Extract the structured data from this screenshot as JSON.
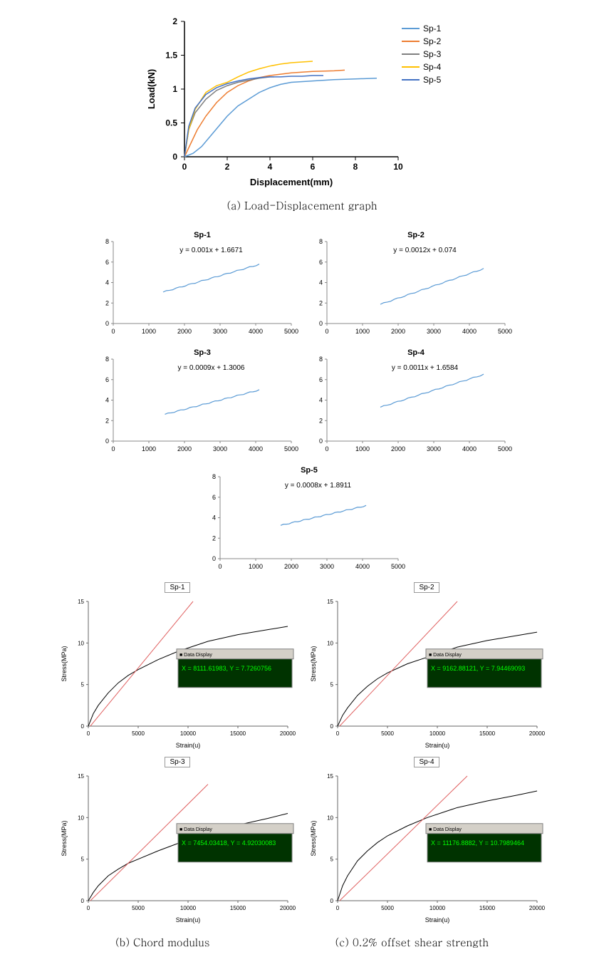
{
  "chart_a": {
    "type": "line",
    "title_fontsize": 14,
    "xlabel": "Displacement(mm)",
    "ylabel": "Load(kN)",
    "label_fontsize": 13,
    "xlim": [
      0,
      10
    ],
    "ylim": [
      0,
      2
    ],
    "xtick_step": 2,
    "ytick_step": 0.5,
    "background_color": "#ffffff",
    "axis_color": "#000000",
    "tick_fontsize": 12,
    "line_width": 1.5,
    "legend_position": "right",
    "series": [
      {
        "name": "Sp-1",
        "color": "#5b9bd5",
        "x": [
          0,
          0.4,
          0.8,
          1.2,
          1.6,
          2,
          2.5,
          3,
          3.5,
          4,
          4.5,
          5,
          6,
          7,
          8,
          9
        ],
        "y": [
          0,
          0.05,
          0.15,
          0.3,
          0.45,
          0.6,
          0.75,
          0.85,
          0.95,
          1.02,
          1.07,
          1.1,
          1.12,
          1.14,
          1.15,
          1.16
        ]
      },
      {
        "name": "Sp-2",
        "color": "#ed7d31",
        "x": [
          0,
          0.3,
          0.6,
          1,
          1.5,
          2,
          2.5,
          3,
          3.5,
          4,
          4.5,
          5,
          6,
          7,
          7.5
        ],
        "y": [
          0,
          0.2,
          0.4,
          0.6,
          0.8,
          0.95,
          1.05,
          1.12,
          1.17,
          1.2,
          1.22,
          1.24,
          1.26,
          1.27,
          1.28
        ]
      },
      {
        "name": "Sp-3",
        "color": "#7f7f7f",
        "x": [
          0,
          0.2,
          0.5,
          1,
          1.5,
          2,
          2.5,
          3,
          3.5,
          4,
          4.2
        ],
        "y": [
          0,
          0.4,
          0.65,
          0.85,
          0.98,
          1.05,
          1.1,
          1.13,
          1.16,
          1.18,
          1.18
        ]
      },
      {
        "name": "Sp-4",
        "color": "#ffc000",
        "x": [
          0,
          0.2,
          0.5,
          1,
          1.5,
          2,
          2.5,
          3,
          3.5,
          4,
          4.5,
          5,
          5.5,
          6
        ],
        "y": [
          0,
          0.4,
          0.7,
          0.95,
          1.05,
          1.1,
          1.18,
          1.25,
          1.3,
          1.34,
          1.37,
          1.39,
          1.4,
          1.41
        ]
      },
      {
        "name": "Sp-5",
        "color": "#4472c4",
        "x": [
          0,
          0.2,
          0.5,
          1,
          1.5,
          2,
          2.5,
          3,
          3.5,
          4,
          4.5,
          5,
          5.5,
          6,
          6.5
        ],
        "y": [
          0,
          0.45,
          0.72,
          0.92,
          1.02,
          1.08,
          1.12,
          1.15,
          1.17,
          1.18,
          1.18,
          1.19,
          1.19,
          1.2,
          1.2
        ]
      }
    ],
    "caption": "(a) Load-Displacement graph"
  },
  "chart_b": {
    "type": "line",
    "xlim": [
      0,
      5000
    ],
    "ylim": [
      0,
      8
    ],
    "xticks": [
      0,
      1000,
      2000,
      3000,
      4000,
      5000
    ],
    "yticks": [
      0,
      2,
      4,
      6,
      8
    ],
    "axis_color": "#888888",
    "line_color": "#5b9bd5",
    "line_width": 1.2,
    "title_fontsize": 11,
    "tick_fontsize": 9,
    "eq_fontsize": 10,
    "panels": [
      {
        "title": "Sp-1",
        "equation": "y = 0.001x + 1.6671",
        "data_x": [
          1400,
          4100
        ],
        "data_y": [
          3.07,
          5.77
        ]
      },
      {
        "title": "Sp-2",
        "equation": "y = 0.0012x + 0.074",
        "data_x": [
          1500,
          4400
        ],
        "data_y": [
          1.87,
          5.35
        ]
      },
      {
        "title": "Sp-3",
        "equation": "y = 0.0009x + 1.3006",
        "data_x": [
          1450,
          4100
        ],
        "data_y": [
          2.61,
          4.99
        ]
      },
      {
        "title": "Sp-4",
        "equation": "y = 0.0011x + 1.6584",
        "data_x": [
          1500,
          4400
        ],
        "data_y": [
          3.31,
          6.5
        ]
      },
      {
        "title": "Sp-5",
        "equation": "y = 0.0008x + 1.8911",
        "data_x": [
          1700,
          4100
        ],
        "data_y": [
          3.25,
          5.17
        ]
      }
    ],
    "caption_b": "(b) Chord modulus",
    "caption_c": "(c) 0.2% offset shear strength"
  },
  "chart_c": {
    "type": "line",
    "xlabel": "Strain(u)",
    "ylabel": "Stress(MPa)",
    "label_fontsize": 9,
    "xlim": [
      0,
      20000
    ],
    "ylim": [
      0,
      15
    ],
    "xticks": [
      0,
      5000,
      10000,
      15000,
      20000
    ],
    "yticks": [
      0,
      5,
      10,
      15
    ],
    "axis_color": "#666666",
    "curve_color": "#000000",
    "offset_line_color": "#e06060",
    "tick_fontsize": 8,
    "title_fontsize": 10,
    "tooltip_bg": "#003300",
    "tooltip_text_color": "#00ff00",
    "tooltip_border": "#808080",
    "panels": [
      {
        "title": "Sp-1",
        "tooltip": "X = 8111.61983, Y = 7.7260756",
        "curve_x": [
          0,
          500,
          1000,
          2000,
          3000,
          4000,
          5000,
          7000,
          9000,
          12000,
          15000,
          18000,
          20000
        ],
        "curve_y": [
          0,
          1.5,
          2.5,
          4.0,
          5.2,
          6.1,
          6.8,
          8.0,
          9.0,
          10.2,
          11.0,
          11.6,
          12.0
        ],
        "offset_x": [
          200,
          10500
        ],
        "offset_y": [
          0,
          15
        ]
      },
      {
        "title": "Sp-2",
        "tooltip": "X = 9162.88121, Y = 7.94469093",
        "curve_x": [
          0,
          500,
          1000,
          2000,
          3000,
          4000,
          5000,
          7000,
          9000,
          12000,
          15000,
          18000,
          20000
        ],
        "curve_y": [
          0,
          1.3,
          2.2,
          3.7,
          4.8,
          5.7,
          6.4,
          7.5,
          8.3,
          9.5,
          10.3,
          10.9,
          11.3
        ],
        "offset_x": [
          200,
          12000
        ],
        "offset_y": [
          0,
          15
        ]
      },
      {
        "title": "Sp-3",
        "tooltip": "X = 7454.03418, Y = 4.92030083",
        "curve_x": [
          0,
          500,
          1000,
          2000,
          3000,
          4000,
          5000,
          7000,
          9000,
          12000,
          15000,
          18000,
          20000
        ],
        "curve_y": [
          0,
          1.0,
          1.8,
          3.0,
          3.8,
          4.5,
          5.0,
          6.0,
          6.9,
          8.1,
          9.1,
          9.9,
          10.5
        ],
        "offset_x": [
          200,
          12000
        ],
        "offset_y": [
          0,
          14
        ]
      },
      {
        "title": "Sp-4",
        "tooltip": "X = 11176.8882, Y = 10.7989464",
        "curve_x": [
          0,
          500,
          1000,
          2000,
          3000,
          4000,
          5000,
          7000,
          9000,
          12000,
          15000,
          18000,
          20000
        ],
        "curve_y": [
          0,
          1.8,
          3.0,
          4.8,
          6.0,
          7.0,
          7.8,
          9.0,
          10.0,
          11.2,
          12.0,
          12.7,
          13.2
        ],
        "offset_x": [
          200,
          13000
        ],
        "offset_y": [
          0,
          15
        ]
      }
    ]
  }
}
